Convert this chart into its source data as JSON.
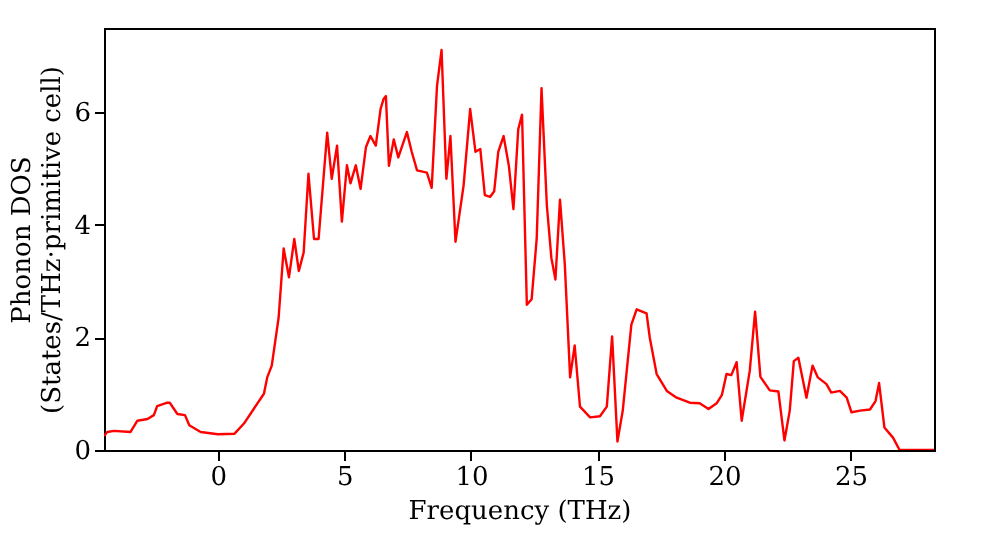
{
  "chart_data": {
    "type": "line",
    "xlabel": "Frequency (THz)",
    "ylabel": "Phonon DOS\n(States/THz·primitive cell)",
    "xlim": [
      -4.5,
      28.3
    ],
    "ylim": [
      0,
      7.5
    ],
    "xticks": [
      0,
      5,
      10,
      15,
      20,
      25
    ],
    "yticks": [
      0,
      2,
      4,
      6
    ],
    "grid": false,
    "x": [
      -4.5,
      -4.37,
      -4.1,
      -3.45,
      -3.18,
      -2.78,
      -2.53,
      -2.4,
      -2.0,
      -1.9,
      -1.6,
      -1.3,
      -1.13,
      -0.68,
      0,
      0.66,
      1.03,
      1.55,
      1.82,
      1.95,
      2.13,
      2.4,
      2.6,
      2.81,
      3.02,
      3.2,
      3.39,
      3.58,
      3.8,
      3.98,
      4.32,
      4.5,
      4.71,
      4.9,
      5.1,
      5.24,
      5.45,
      5.64,
      5.85,
      6.03,
      6.24,
      6.43,
      6.55,
      6.64,
      6.76,
      6.95,
      7.13,
      7.47,
      7.66,
      7.87,
      8.26,
      8.45,
      8.66,
      8.84,
      9.03,
      9.19,
      9.39,
      9.71,
      9.97,
      10.18,
      10.37,
      10.55,
      10.76,
      10.92,
      11.08,
      11.29,
      11.5,
      11.68,
      11.87,
      12.02,
      12.21,
      12.4,
      12.6,
      12.79,
      13.0,
      13.18,
      13.34,
      13.52,
      13.71,
      13.92,
      14.1,
      14.31,
      14.71,
      15.1,
      15.37,
      15.58,
      15.79,
      16.0,
      16.34,
      16.55,
      16.94,
      17.07,
      17.34,
      17.74,
      18.13,
      18.65,
      19.04,
      19.39,
      19.71,
      19.92,
      20.1,
      20.29,
      20.5,
      20.7,
      21.02,
      21.23,
      21.44,
      21.81,
      22.15,
      22.39,
      22.6,
      22.76,
      22.94,
      23.26,
      23.5,
      23.71,
      24.05,
      24.24,
      24.58,
      24.85,
      25.04,
      25.38,
      25.77,
      25.99,
      26.13,
      26.34,
      26.68,
      26.94,
      28.3
    ],
    "series": [
      {
        "color": "#ff0000",
        "values": [
          0.25,
          0.32,
          0.34,
          0.32,
          0.52,
          0.55,
          0.62,
          0.78,
          0.84,
          0.84,
          0.64,
          0.62,
          0.44,
          0.32,
          0.28,
          0.29,
          0.47,
          0.82,
          1.0,
          1.29,
          1.5,
          2.35,
          3.58,
          3.07,
          3.75,
          3.18,
          3.51,
          4.91,
          3.75,
          3.75,
          5.64,
          4.82,
          5.41,
          4.06,
          5.06,
          4.74,
          5.06,
          4.64,
          5.38,
          5.58,
          5.41,
          6.06,
          6.24,
          6.29,
          5.05,
          5.52,
          5.2,
          5.65,
          5.3,
          4.97,
          4.93,
          4.66,
          6.47,
          7.11,
          4.82,
          5.58,
          3.7,
          4.7,
          6.06,
          5.3,
          5.35,
          4.53,
          4.5,
          4.6,
          5.3,
          5.58,
          5.05,
          4.28,
          5.7,
          5.96,
          2.58,
          2.68,
          3.76,
          6.43,
          4.35,
          3.41,
          3.03,
          4.45,
          3.3,
          1.29,
          1.86,
          0.77,
          0.58,
          0.6,
          0.77,
          2.02,
          0.15,
          0.7,
          2.23,
          2.5,
          2.43,
          1.99,
          1.35,
          1.05,
          0.93,
          0.84,
          0.83,
          0.73,
          0.83,
          0.98,
          1.35,
          1.33,
          1.56,
          0.52,
          1.41,
          2.46,
          1.3,
          1.06,
          1.04,
          0.17,
          0.7,
          1.58,
          1.64,
          0.93,
          1.5,
          1.29,
          1.17,
          1.02,
          1.05,
          0.93,
          0.67,
          0.7,
          0.72,
          0.87,
          1.19,
          0.4,
          0.22,
          0.0,
          0.0
        ]
      }
    ]
  }
}
